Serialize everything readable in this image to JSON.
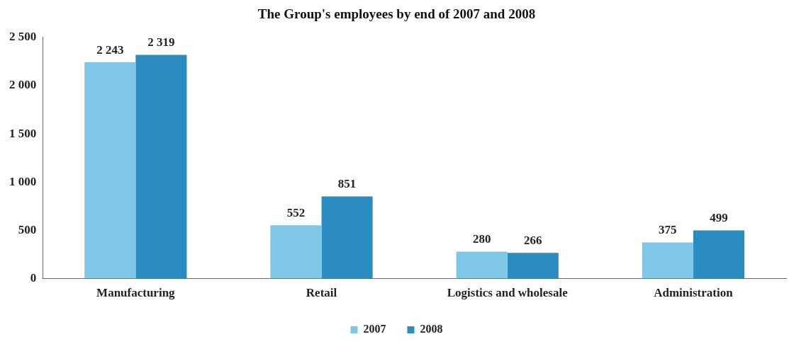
{
  "chart_data": {
    "type": "bar",
    "title": "The Group's employees by end of 2007 and 2008",
    "categories": [
      "Manufacturing",
      "Retail",
      "Logistics and wholesale",
      "Administration"
    ],
    "series": [
      {
        "name": "2007",
        "color": "#7ec7e6",
        "values": [
          2243,
          552,
          280,
          375
        ],
        "value_labels": [
          "2 243",
          "552",
          "280",
          "375"
        ]
      },
      {
        "name": "2008",
        "color": "#2a8cc0",
        "values": [
          2319,
          851,
          266,
          499
        ],
        "value_labels": [
          "2 319",
          "851",
          "266",
          "499"
        ]
      }
    ],
    "ylim": [
      0,
      2500
    ],
    "yticks": [
      {
        "value": 0,
        "label": "0"
      },
      {
        "value": 500,
        "label": "500"
      },
      {
        "value": 1000,
        "label": "1 000"
      },
      {
        "value": 1500,
        "label": "1 500"
      },
      {
        "value": 2000,
        "label": "2 000"
      },
      {
        "value": 2500,
        "label": "2 500"
      }
    ],
    "grid": false,
    "legend": "bottom"
  }
}
